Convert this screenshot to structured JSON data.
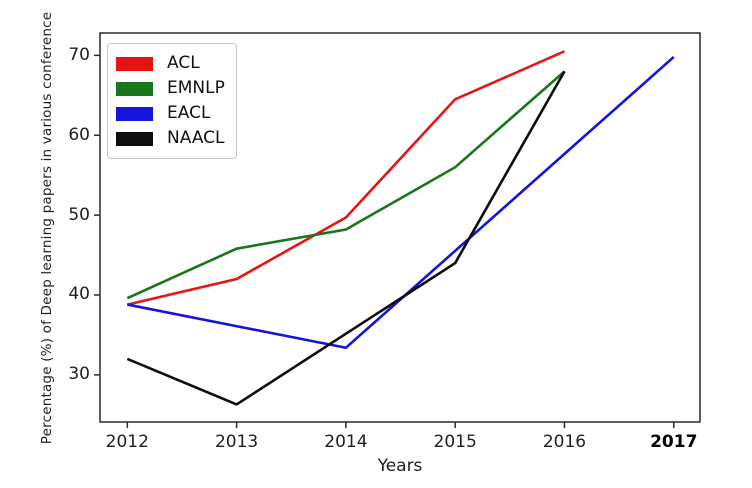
{
  "figure": {
    "xlabel": "Years",
    "ylabel": "Percentage (%) of Deep learning papers in various conference",
    "background": "#ffffff",
    "text_color": "#1f1f1f",
    "spine_color": "#2a2a2a",
    "bold_x_ticks": [
      "2017"
    ]
  },
  "legend": {
    "position": "upper-left",
    "items": [
      {
        "label": "ACL",
        "color": "#e81414"
      },
      {
        "label": "EMNLP",
        "color": "#19761b"
      },
      {
        "label": "EACL",
        "color": "#1414dd"
      },
      {
        "label": "NAACL",
        "color": "#0d0d0d"
      }
    ]
  },
  "chart_data": {
    "type": "line",
    "title": "",
    "xlabel": "Years",
    "ylabel": "Percentage (%) of Deep learning papers in various conference",
    "x_ticks": [
      2012,
      2013,
      2014,
      2015,
      2016,
      2017
    ],
    "y_ticks": [
      30,
      40,
      50,
      60,
      70
    ],
    "xlim": [
      2011.75,
      2017.24
    ],
    "ylim": [
      24.1,
      72.8
    ],
    "grid": false,
    "legend_position": "upper left",
    "series": [
      {
        "name": "ACL",
        "color": "#e81414",
        "x": [
          2012,
          2013,
          2014,
          2015,
          2016
        ],
        "values": [
          38.8,
          42.0,
          49.7,
          64.5,
          70.5
        ]
      },
      {
        "name": "EMNLP",
        "color": "#19761b",
        "x": [
          2012,
          2013,
          2014,
          2015,
          2016
        ],
        "values": [
          39.6,
          45.8,
          48.2,
          56.0,
          68.0
        ]
      },
      {
        "name": "EACL",
        "color": "#1414dd",
        "x": [
          2012,
          2014,
          2017
        ],
        "values": [
          38.8,
          33.4,
          69.8
        ]
      },
      {
        "name": "NAACL",
        "color": "#0d0d0d",
        "x": [
          2012,
          2013,
          2015,
          2016
        ],
        "values": [
          32.0,
          26.3,
          44.0,
          68.0
        ]
      }
    ]
  }
}
